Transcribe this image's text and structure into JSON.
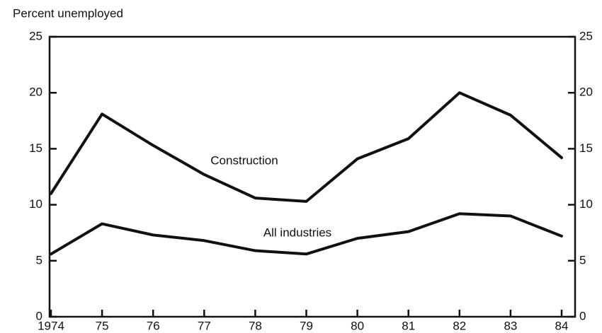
{
  "chart_data": {
    "type": "line",
    "title": "Percent unemployed",
    "categories": [
      "1974",
      "75",
      "76",
      "77",
      "78",
      "79",
      "80",
      "81",
      "82",
      "83",
      "84"
    ],
    "series": [
      {
        "name": "Construction",
        "color": "#111111",
        "values": [
          11.0,
          18.1,
          15.3,
          12.7,
          10.6,
          10.3,
          14.1,
          15.9,
          20.0,
          18.0,
          14.2
        ]
      },
      {
        "name": "All industries",
        "color": "#111111",
        "values": [
          5.6,
          8.3,
          7.3,
          6.8,
          5.9,
          5.6,
          7.0,
          7.6,
          9.2,
          9.0,
          7.2
        ]
      }
    ],
    "ylim": [
      0,
      25
    ],
    "yticks": [
      0,
      5,
      10,
      15,
      20,
      25
    ],
    "grid": false
  }
}
